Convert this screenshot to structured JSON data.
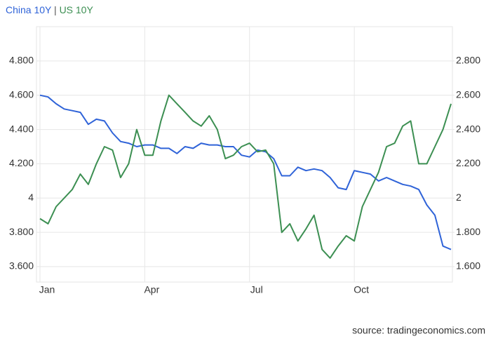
{
  "chart_data": {
    "type": "line",
    "title_separator": "|",
    "source": "source: tradingeconomics.com",
    "categories": [
      "Jan",
      null,
      null,
      null,
      null,
      null,
      null,
      null,
      null,
      null,
      null,
      null,
      null,
      "Apr",
      null,
      null,
      null,
      null,
      null,
      null,
      null,
      null,
      null,
      null,
      null,
      null,
      "Jul",
      null,
      null,
      null,
      null,
      null,
      null,
      null,
      null,
      null,
      null,
      null,
      null,
      "Oct",
      null,
      null,
      null,
      null,
      null,
      null,
      null,
      null,
      null,
      null,
      null,
      null
    ],
    "series": [
      {
        "name": "China 10Y",
        "color": "#2f63d8",
        "axis": "y",
        "values": [
          4.6,
          4.59,
          4.55,
          4.52,
          4.51,
          4.5,
          4.43,
          4.46,
          4.45,
          4.38,
          4.33,
          4.32,
          4.3,
          4.31,
          4.31,
          4.29,
          4.29,
          4.26,
          4.3,
          4.29,
          4.32,
          4.31,
          4.31,
          4.3,
          4.3,
          4.25,
          4.24,
          4.28,
          4.27,
          4.23,
          4.13,
          4.13,
          4.18,
          4.16,
          4.17,
          4.16,
          4.12,
          4.06,
          4.05,
          4.16,
          4.15,
          4.14,
          4.1,
          4.12,
          4.1,
          4.08,
          4.07,
          4.05,
          3.96,
          3.9,
          3.72,
          3.7
        ]
      },
      {
        "name": "US 10Y",
        "color": "#3c8f52",
        "axis": "y2",
        "values": [
          1.88,
          1.85,
          1.95,
          2.0,
          2.05,
          2.14,
          2.08,
          2.2,
          2.3,
          2.28,
          2.12,
          2.2,
          2.4,
          2.25,
          2.25,
          2.45,
          2.6,
          2.55,
          2.5,
          2.45,
          2.42,
          2.48,
          2.4,
          2.23,
          2.25,
          2.3,
          2.32,
          2.27,
          2.28,
          2.2,
          1.8,
          1.85,
          1.75,
          1.82,
          1.9,
          1.7,
          1.65,
          1.72,
          1.78,
          1.75,
          1.95,
          2.05,
          2.15,
          2.3,
          2.32,
          2.42,
          2.45,
          2.2,
          2.2,
          2.3,
          2.4,
          2.55
        ]
      }
    ],
    "ylim": [
      3.51,
      5.0
    ],
    "yticks": [
      {
        "value": 3.6,
        "label": "3.600"
      },
      {
        "value": 3.8,
        "label": "3.800"
      },
      4,
      {
        "value": 4.2,
        "label": "4.200"
      },
      {
        "value": 4.4,
        "label": "4.400"
      },
      {
        "value": 4.6,
        "label": "4.600"
      },
      {
        "value": 4.8,
        "label": "4.800"
      }
    ],
    "y2lim": [
      1.51,
      3.0
    ],
    "y2ticks": [
      {
        "value": 1.6,
        "label": "1.600"
      },
      {
        "value": 1.8,
        "label": "1.800"
      },
      2,
      {
        "value": 2.2,
        "label": "2.200"
      },
      {
        "value": 2.4,
        "label": "2.400"
      },
      {
        "value": 2.6,
        "label": "2.600"
      },
      {
        "value": 2.8,
        "label": "2.800"
      }
    ],
    "grid": true
  }
}
